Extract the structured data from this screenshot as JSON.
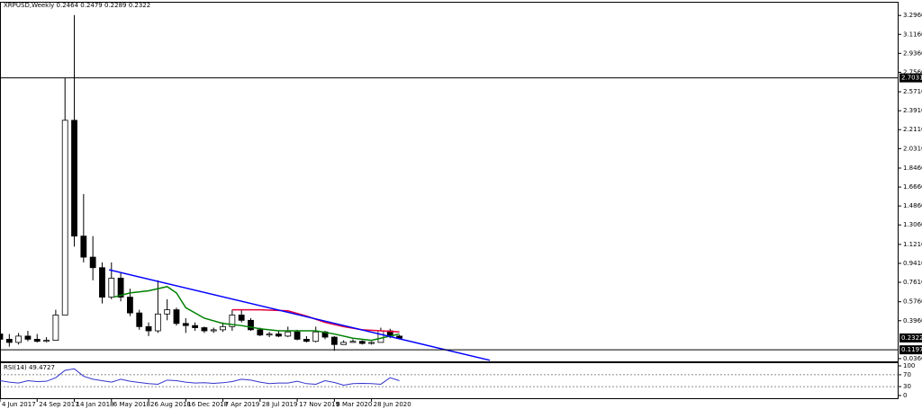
{
  "chart_data": [
    {
      "type": "candlestick",
      "title": "XRPUSD,Weekly  0.2464 0.2479 0.2289 0.2322",
      "x": [
        0,
        4,
        8,
        12,
        16,
        20,
        24,
        28,
        32,
        36,
        40,
        44,
        48,
        52,
        56,
        60,
        64,
        68,
        72,
        76,
        80,
        84,
        88,
        92,
        96,
        100,
        104,
        108,
        112,
        116,
        120,
        124,
        128,
        132,
        136,
        140,
        144,
        148,
        152,
        156,
        160,
        164,
        168,
        172
      ],
      "open": [
        0.27,
        0.22,
        0.19,
        0.25,
        0.22,
        0.2,
        0.21,
        0.45,
        2.3,
        1.2,
        1.0,
        0.9,
        0.62,
        0.8,
        0.62,
        0.47,
        0.34,
        0.3,
        0.46,
        0.5,
        0.37,
        0.35,
        0.33,
        0.3,
        0.31,
        0.34,
        0.45,
        0.4,
        0.31,
        0.26,
        0.27,
        0.25,
        0.29,
        0.22,
        0.2,
        0.29,
        0.24,
        0.17,
        0.19,
        0.2,
        0.18,
        0.19,
        0.3,
        0.25
      ],
      "high": [
        0.3,
        0.27,
        0.28,
        0.3,
        0.27,
        0.24,
        0.5,
        2.7,
        3.3,
        1.6,
        1.2,
        0.95,
        0.95,
        0.85,
        0.7,
        0.5,
        0.38,
        0.78,
        0.6,
        0.52,
        0.42,
        0.38,
        0.34,
        0.33,
        0.38,
        0.5,
        0.5,
        0.42,
        0.33,
        0.29,
        0.3,
        0.34,
        0.31,
        0.25,
        0.34,
        0.3,
        0.25,
        0.21,
        0.22,
        0.21,
        0.2,
        0.33,
        0.32,
        0.26
      ],
      "low": [
        0.2,
        0.15,
        0.17,
        0.2,
        0.19,
        0.19,
        0.21,
        0.45,
        1.1,
        0.95,
        0.78,
        0.56,
        0.6,
        0.58,
        0.44,
        0.31,
        0.25,
        0.28,
        0.4,
        0.35,
        0.28,
        0.3,
        0.28,
        0.28,
        0.29,
        0.3,
        0.38,
        0.3,
        0.25,
        0.24,
        0.24,
        0.24,
        0.21,
        0.19,
        0.19,
        0.22,
        0.11,
        0.17,
        0.19,
        0.17,
        0.17,
        0.19,
        0.23,
        0.23
      ],
      "close": [
        0.22,
        0.19,
        0.25,
        0.22,
        0.2,
        0.21,
        0.45,
        2.3,
        1.2,
        1.0,
        0.9,
        0.62,
        0.8,
        0.62,
        0.47,
        0.34,
        0.3,
        0.46,
        0.5,
        0.37,
        0.35,
        0.33,
        0.3,
        0.31,
        0.34,
        0.45,
        0.4,
        0.31,
        0.26,
        0.27,
        0.25,
        0.29,
        0.22,
        0.2,
        0.29,
        0.24,
        0.17,
        0.19,
        0.2,
        0.18,
        0.19,
        0.3,
        0.25,
        0.23
      ],
      "overlays": [
        {
          "color": "#008000",
          "x": [
            49,
            56,
            64,
            72,
            76,
            80,
            88,
            96,
            104,
            112,
            120,
            128,
            136,
            144,
            152,
            160,
            168,
            172
          ],
          "values": [
            0.62,
            0.66,
            0.68,
            0.72,
            0.66,
            0.52,
            0.42,
            0.37,
            0.35,
            0.32,
            0.3,
            0.3,
            0.3,
            0.27,
            0.23,
            0.21,
            0.25,
            0.27
          ]
        },
        {
          "color": "#e8003a",
          "x": [
            100,
            112,
            124,
            132,
            140,
            148,
            156,
            164,
            172
          ],
          "values": [
            0.5,
            0.5,
            0.49,
            0.44,
            0.38,
            0.34,
            0.31,
            0.3,
            0.29
          ]
        },
        {
          "color": "#0000ff",
          "x": [
            47,
            211
          ],
          "values": [
            0.88,
            0.02
          ]
        }
      ],
      "hlines": [
        2.7031,
        0.1197
      ],
      "last_price": 0.2322,
      "xlim": [
        0,
        387
      ],
      "ylim": [
        0.01,
        3.4
      ],
      "yticks": [
        {
          "value": 3.296,
          "label": "3.2960"
        },
        {
          "value": 3.116,
          "label": "3.1160"
        },
        {
          "value": 2.936,
          "label": "2.9360"
        },
        {
          "value": 2.756,
          "label": "2.7560"
        },
        {
          "value": 2.571,
          "label": "2.5710"
        },
        {
          "value": 2.391,
          "label": "2.3910"
        },
        {
          "value": 2.211,
          "label": "2.2110"
        },
        {
          "value": 2.031,
          "label": "2.0310"
        },
        {
          "value": 1.846,
          "label": "1.8460"
        },
        {
          "value": 1.666,
          "label": "1.6660"
        },
        {
          "value": 1.486,
          "label": "1.4860"
        },
        {
          "value": 1.306,
          "label": "1.3060"
        },
        {
          "value": 1.121,
          "label": "1.1210"
        },
        {
          "value": 0.941,
          "label": "0.9410"
        },
        {
          "value": 0.761,
          "label": "0.7610"
        },
        {
          "value": 0.576,
          "label": "0.5760"
        },
        {
          "value": 0.396,
          "label": "0.3960"
        },
        {
          "value": 0.036,
          "label": "0.0360"
        }
      ]
    },
    {
      "type": "line",
      "title": "RSI(14) 49.4727",
      "color": "#3333cc",
      "x": [
        0,
        4,
        8,
        12,
        16,
        20,
        24,
        28,
        32,
        36,
        40,
        44,
        48,
        52,
        56,
        60,
        64,
        68,
        72,
        76,
        80,
        84,
        88,
        92,
        96,
        100,
        104,
        108,
        112,
        116,
        120,
        124,
        128,
        132,
        136,
        140,
        144,
        148,
        152,
        156,
        160,
        164,
        168,
        172
      ],
      "values": [
        50,
        45,
        42,
        50,
        47,
        48,
        60,
        85,
        90,
        65,
        55,
        50,
        45,
        55,
        48,
        44,
        40,
        38,
        52,
        50,
        45,
        42,
        43,
        41,
        43,
        47,
        55,
        52,
        45,
        40,
        42,
        42,
        48,
        40,
        38,
        50,
        44,
        35,
        40,
        41,
        40,
        38,
        60,
        50
      ],
      "levels": [
        70,
        30
      ],
      "xlim": [
        0,
        387
      ],
      "ylim": [
        0,
        100
      ],
      "yticks": [
        100,
        70,
        30,
        0
      ],
      "xticks": [
        {
          "value": 0,
          "label": "4 Jun 2017"
        },
        {
          "value": 16,
          "label": "24 Sep 2017"
        },
        {
          "value": 32,
          "label": "14 Jan 2018"
        },
        {
          "value": 48,
          "label": "6 May 2018"
        },
        {
          "value": 64,
          "label": "26 Aug 2018"
        },
        {
          "value": 80,
          "label": "16 Dec 2018"
        },
        {
          "value": 96,
          "label": "7 Apr 2019"
        },
        {
          "value": 112,
          "label": "28 Jul 2019"
        },
        {
          "value": 128,
          "label": "17 Nov 2019"
        },
        {
          "value": 144,
          "label": "8 Mar 2020"
        },
        {
          "value": 160,
          "label": "28 Jun 2020"
        }
      ]
    }
  ]
}
